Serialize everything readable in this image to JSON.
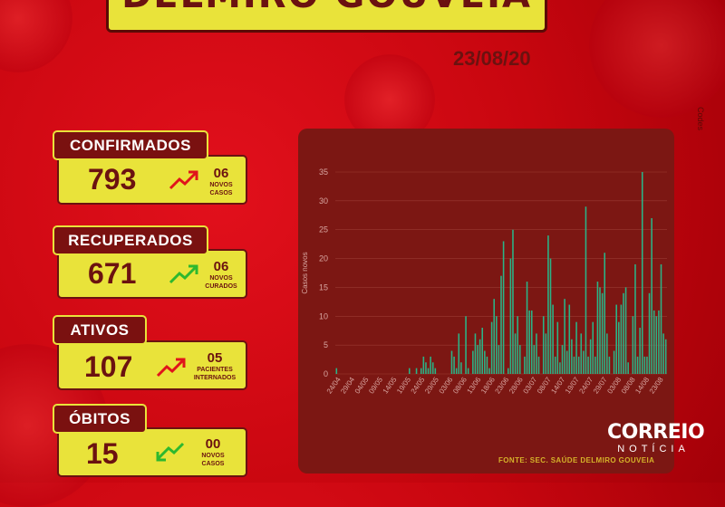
{
  "header": {
    "title": "DELMIRO GOUVEIA",
    "date": "23/08/20",
    "side_credit": "Codes"
  },
  "colors": {
    "box_yellow": "#e9e33a",
    "label_red": "#7a1110",
    "text_brown": "#6b1210",
    "up_arrow": "#e0141b",
    "up_arrow_green": "#2eb82e",
    "down_arrow": "#2eb82e",
    "bar": "#2ab487"
  },
  "cards": [
    {
      "label": "CONFIRMADOS",
      "value": "793",
      "sub_value": "06",
      "sub_label": "NOVOS CASOS",
      "trend_icon": "trend-up-red-icon"
    },
    {
      "label": "RECUPERADOS",
      "value": "671",
      "sub_value": "06",
      "sub_label": "NOVOS CURADOS",
      "trend_icon": "trend-up-green-icon"
    },
    {
      "label": "ATIVOS",
      "value": "107",
      "sub_value": "05",
      "sub_label": "PACIENTES INTERNADOS",
      "trend_icon": "trend-up-red-icon"
    },
    {
      "label": "ÓBITOS",
      "value": "15",
      "sub_value": "00",
      "sub_label": "NOVOS CASOS",
      "trend_icon": "trend-down-green-icon"
    }
  ],
  "chart_data": {
    "type": "bar",
    "ylabel": "Casos novos",
    "ylim": [
      0,
      35
    ],
    "yticks": [
      0,
      5,
      10,
      15,
      20,
      25,
      30,
      35
    ],
    "grid": true,
    "x_tick_labels": [
      "24/04",
      "29/04",
      "04/05",
      "09/05",
      "14/05",
      "19/05",
      "24/05",
      "29/05",
      "03/06",
      "08/06",
      "13/06",
      "18/06",
      "23/06",
      "28/06",
      "03/07",
      "08/07",
      "14/07",
      "19/07",
      "24/07",
      "29/07",
      "03/08",
      "08/08",
      "14/08",
      "23/08"
    ],
    "values": [
      1,
      0,
      0,
      0,
      0,
      0,
      0,
      0,
      0,
      0,
      0,
      0,
      0,
      0,
      0,
      0,
      0,
      0,
      0,
      0,
      0,
      0,
      0,
      0,
      0,
      0,
      0,
      0,
      0,
      0,
      0,
      1,
      0,
      0,
      1,
      0,
      1,
      3,
      2,
      1,
      3,
      2,
      1,
      0,
      0,
      0,
      0,
      0,
      0,
      4,
      3,
      1,
      7,
      2,
      0,
      10,
      1,
      0,
      4,
      7,
      5,
      6,
      8,
      4,
      3,
      1,
      9,
      13,
      10,
      5,
      17,
      23,
      0,
      1,
      20,
      25,
      7,
      10,
      5,
      0,
      3,
      16,
      11,
      11,
      5,
      7,
      3,
      0,
      10,
      7,
      24,
      20,
      12,
      3,
      9,
      2,
      5,
      13,
      4,
      12,
      6,
      3,
      9,
      3,
      7,
      4,
      29,
      3,
      6,
      9,
      3,
      16,
      15,
      14,
      21,
      7,
      3,
      0,
      4,
      12,
      9,
      12,
      14,
      15,
      2,
      0,
      10,
      19,
      3,
      8,
      35,
      3,
      3,
      14,
      27,
      11,
      10,
      11,
      19,
      7,
      6
    ]
  },
  "footer": {
    "fonte": "FONTE: SEC. SAÚDE DELMIRO GOUVEIA",
    "brand_main": "CORREIO",
    "brand_sub": "NOTÍCIA"
  }
}
